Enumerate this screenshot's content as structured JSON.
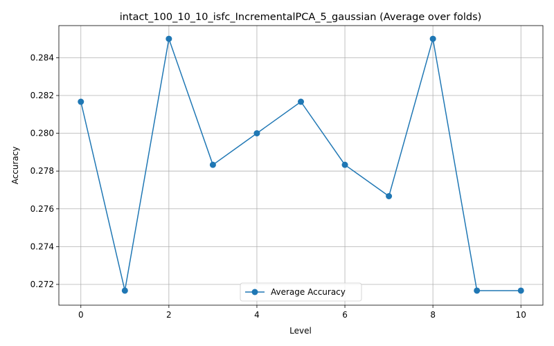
{
  "chart_data": {
    "type": "line",
    "title": "intact_100_10_10_isfc_IncrementalPCA_5_gaussian (Average over folds)",
    "xlabel": "Level",
    "ylabel": "Accuracy",
    "x": [
      0,
      1,
      2,
      3,
      4,
      5,
      6,
      7,
      8,
      9,
      10
    ],
    "series": [
      {
        "name": "Average Accuracy",
        "values": [
          0.28167,
          0.27167,
          0.285,
          0.27833,
          0.28,
          0.28167,
          0.27833,
          0.27667,
          0.285,
          0.27167,
          0.27167
        ],
        "color": "#1f77b4",
        "marker": "circle"
      }
    ],
    "xlim": [
      -0.5,
      10.5
    ],
    "ylim": [
      0.2709,
      0.2857
    ],
    "xticks": [
      0,
      2,
      4,
      6,
      8,
      10
    ],
    "xtick_labels": [
      "0",
      "2",
      "4",
      "6",
      "8",
      "10"
    ],
    "yticks": [
      0.272,
      0.274,
      0.276,
      0.278,
      0.28,
      0.282,
      0.284
    ],
    "ytick_labels": [
      "0.272",
      "0.274",
      "0.276",
      "0.278",
      "0.280",
      "0.282",
      "0.284"
    ],
    "grid": true,
    "legend_position": "lower-center"
  }
}
